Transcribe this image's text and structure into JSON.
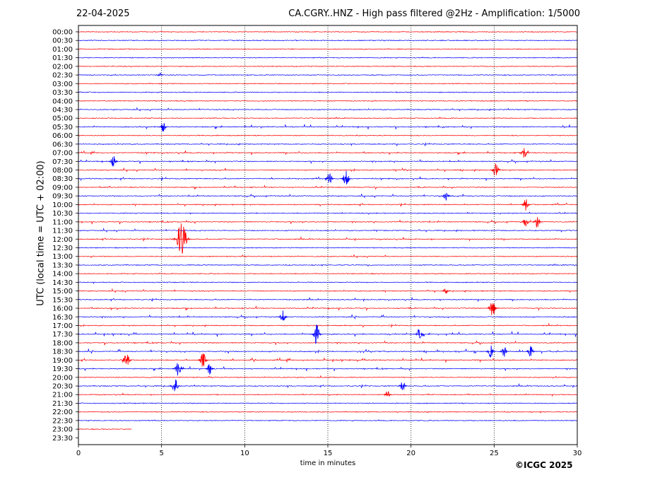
{
  "header": {
    "date": "22-04-2025",
    "title": "CA.CGRY..HNZ - High pass filtered @2Hz - Amplification: 1/5000"
  },
  "footer": {
    "copyright": "©ICGC 2025"
  },
  "colors": {
    "trace_a": "#ff0000",
    "trace_b": "#0000ff",
    "grid": "#000000"
  },
  "chart_data": {
    "type": "line",
    "title": "CA.CGRY..HNZ - High pass filtered @2Hz - Amplification: 1/5000",
    "xlabel": "time in minutes",
    "ylabel": "UTC (local time = UTC + 02:00)",
    "xlim": [
      0,
      30
    ],
    "x_ticks": [
      "0",
      "5",
      "10",
      "15",
      "20",
      "25",
      "30"
    ],
    "vertical_gridlines_at": [
      5,
      10,
      15,
      20,
      25
    ],
    "rows": [
      "00:00",
      "00:30",
      "01:00",
      "01:30",
      "02:00",
      "02:30",
      "03:00",
      "03:30",
      "04:00",
      "04:30",
      "05:00",
      "05:30",
      "06:00",
      "06:30",
      "07:00",
      "07:30",
      "08:00",
      "08:30",
      "09:00",
      "09:30",
      "10:00",
      "10:30",
      "11:00",
      "11:30",
      "12:00",
      "12:30",
      "13:00",
      "13:30",
      "14:00",
      "14:30",
      "15:00",
      "15:30",
      "16:00",
      "16:30",
      "17:00",
      "17:30",
      "18:00",
      "18:30",
      "19:00",
      "19:30",
      "20:00",
      "20:30",
      "21:00",
      "21:30",
      "22:00",
      "22:30",
      "23:00",
      "23:30"
    ],
    "row_color_pattern": [
      "red",
      "blue"
    ],
    "last_trace": {
      "row": "23:00",
      "end_minute": 3.2
    },
    "activity": [
      0.05,
      0.1,
      0.15,
      0.1,
      0.2,
      0.25,
      0.1,
      0.1,
      0.15,
      0.55,
      0.2,
      0.85,
      0.35,
      0.5,
      0.75,
      0.8,
      0.7,
      0.75,
      0.6,
      0.7,
      0.65,
      0.45,
      0.8,
      0.6,
      0.55,
      0.15,
      0.5,
      0.25,
      0.1,
      0.3,
      0.6,
      0.6,
      0.7,
      0.8,
      0.5,
      0.95,
      0.8,
      0.9,
      0.9,
      0.8,
      0.45,
      0.55,
      0.4,
      0.2,
      0.3,
      0.1,
      0.1,
      0.0
    ],
    "events": [
      {
        "row": "02:30",
        "minute": 4.9,
        "amp": 0.5
      },
      {
        "row": "05:30",
        "minute": 5.1,
        "amp": 0.8
      },
      {
        "row": "07:00",
        "minute": 26.8,
        "amp": 1.0
      },
      {
        "row": "07:30",
        "minute": 2.1,
        "amp": 1.0
      },
      {
        "row": "08:00",
        "minute": 25.1,
        "amp": 1.2
      },
      {
        "row": "08:30",
        "minute": 16.1,
        "amp": 1.3
      },
      {
        "row": "08:30",
        "minute": 15.1,
        "amp": 0.9
      },
      {
        "row": "09:30",
        "minute": 22.1,
        "amp": 1.0
      },
      {
        "row": "10:00",
        "minute": 26.9,
        "amp": 1.0
      },
      {
        "row": "11:00",
        "minute": 27.6,
        "amp": 1.1
      },
      {
        "row": "11:00",
        "minute": 26.9,
        "amp": 0.9
      },
      {
        "row": "12:00",
        "minute": 6.2,
        "amp": 3.0
      },
      {
        "row": "15:00",
        "minute": 22.1,
        "amp": 0.6
      },
      {
        "row": "16:00",
        "minute": 24.9,
        "amp": 1.4
      },
      {
        "row": "16:30",
        "minute": 12.3,
        "amp": 1.0
      },
      {
        "row": "17:30",
        "minute": 14.3,
        "amp": 1.6
      },
      {
        "row": "17:30",
        "minute": 20.5,
        "amp": 0.9
      },
      {
        "row": "18:30",
        "minute": 24.8,
        "amp": 1.0
      },
      {
        "row": "18:30",
        "minute": 25.6,
        "amp": 1.0
      },
      {
        "row": "18:30",
        "minute": 27.2,
        "amp": 1.0
      },
      {
        "row": "19:00",
        "minute": 7.5,
        "amp": 1.3
      },
      {
        "row": "19:00",
        "minute": 2.9,
        "amp": 1.2
      },
      {
        "row": "19:30",
        "minute": 6.0,
        "amp": 1.3
      },
      {
        "row": "19:30",
        "minute": 7.9,
        "amp": 1.0
      },
      {
        "row": "20:30",
        "minute": 5.8,
        "amp": 1.3
      },
      {
        "row": "20:30",
        "minute": 19.5,
        "amp": 0.9
      },
      {
        "row": "21:00",
        "minute": 18.6,
        "amp": 0.8
      }
    ]
  }
}
